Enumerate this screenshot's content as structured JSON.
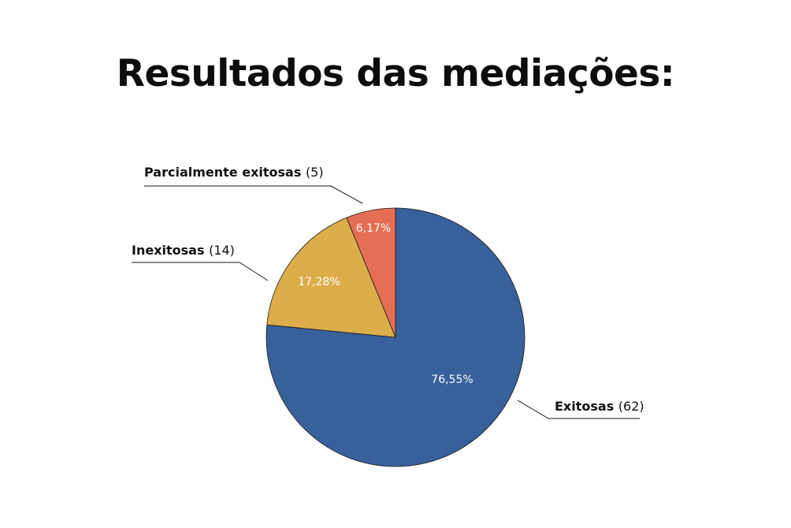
{
  "chart_data": {
    "type": "pie",
    "title": "Resultados das mediações:",
    "slices": [
      {
        "name": "Exitosas",
        "count": "(62)",
        "value": 62,
        "percent_label": "76,55%",
        "color": "#38609b"
      },
      {
        "name": "Inexitosas",
        "count": "(14)",
        "value": 14,
        "percent_label": "17,28%",
        "color": "#dcad4b"
      },
      {
        "name": "Parcialmente exitosas",
        "count": "(5)",
        "value": 5,
        "percent_label": "6,17%",
        "color": "#e56f52"
      }
    ],
    "start_angle_deg": 0,
    "direction": "clockwise",
    "legend": "none"
  }
}
